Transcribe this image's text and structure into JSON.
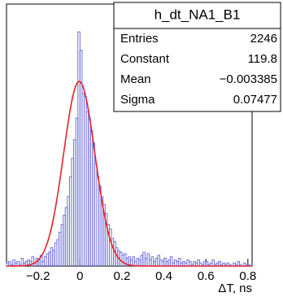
{
  "chart_data": {
    "type": "histogram",
    "bins": [
      -0.35,
      -0.34,
      -0.33,
      -0.32,
      -0.31,
      -0.3,
      -0.29,
      -0.28,
      -0.27,
      -0.26,
      -0.25,
      -0.24,
      -0.23,
      -0.22,
      -0.21,
      -0.2,
      -0.19,
      -0.18,
      -0.17,
      -0.16,
      -0.15,
      -0.14,
      -0.13,
      -0.12,
      -0.11,
      -0.1,
      -0.09,
      -0.08,
      -0.07,
      -0.06,
      -0.05,
      -0.04,
      -0.03,
      -0.02,
      -0.01,
      0,
      0.01,
      0.02,
      0.03,
      0.04,
      0.05,
      0.06,
      0.07,
      0.08,
      0.09,
      0.1,
      0.11,
      0.12,
      0.13,
      0.14,
      0.15,
      0.16,
      0.17,
      0.18,
      0.19,
      0.2,
      0.21,
      0.22,
      0.23,
      0.24,
      0.25,
      0.26,
      0.27,
      0.28,
      0.29,
      0.3,
      0.31,
      0.32,
      0.33,
      0.34,
      0.35,
      0.36,
      0.37,
      0.38,
      0.39,
      0.4,
      0.41,
      0.42,
      0.43,
      0.44,
      0.45,
      0.46,
      0.47,
      0.48,
      0.49,
      0.5,
      0.51,
      0.52,
      0.53,
      0.54,
      0.55,
      0.56,
      0.57,
      0.58,
      0.59,
      0.6,
      0.61,
      0.62,
      0.63,
      0.64,
      0.65,
      0.66,
      0.67,
      0.68,
      0.69,
      0.7,
      0.71,
      0.72,
      0.73,
      0.74,
      0.75,
      0.76,
      0.77,
      0.78,
      0.79,
      0.8,
      0.81,
      0.82
    ],
    "values": [
      2,
      3,
      1,
      4,
      2,
      3,
      1,
      5,
      2,
      3,
      4,
      3,
      6,
      2,
      5,
      4,
      7,
      3,
      6,
      8,
      9,
      12,
      10,
      15,
      17,
      22,
      27,
      33,
      38,
      45,
      58,
      70,
      82,
      96,
      152,
      140,
      112,
      110,
      100,
      96,
      88,
      80,
      66,
      58,
      52,
      45,
      40,
      34,
      27,
      24,
      18,
      16,
      12,
      10,
      9,
      7,
      8,
      5,
      6,
      4,
      6,
      3,
      5,
      4,
      7,
      9,
      5,
      8,
      4,
      6,
      3,
      5,
      7,
      4,
      3,
      5,
      3,
      4,
      6,
      2,
      4,
      3,
      5,
      2,
      3,
      2,
      4,
      3,
      1,
      3,
      2,
      4,
      2,
      1,
      3,
      3,
      1,
      2,
      4,
      1,
      2,
      3,
      1,
      2,
      1,
      2,
      1,
      0,
      2,
      1,
      3,
      1,
      0,
      2,
      1,
      1,
      0
    ],
    "color": "#6f6fe0",
    "fit_color": "#e8202a",
    "x_label": "ΔT, ns",
    "xlim": [
      -0.35,
      0.82
    ],
    "ylim": [
      0,
      170
    ],
    "xticks": [
      {
        "value": -0.2,
        "label": "−0.2"
      },
      0,
      0.2,
      0.4,
      0.6,
      0.8
    ],
    "stats": {
      "title": "h_dt_NA1_B1",
      "rows": [
        {
          "label": "Entries",
          "value": 2246
        },
        {
          "label": "Constant",
          "value": 119.8
        },
        {
          "label": "Mean",
          "value": -0.003385,
          "value_label": "−0.003385"
        },
        {
          "label": "Sigma",
          "value": 0.07477
        }
      ]
    }
  }
}
